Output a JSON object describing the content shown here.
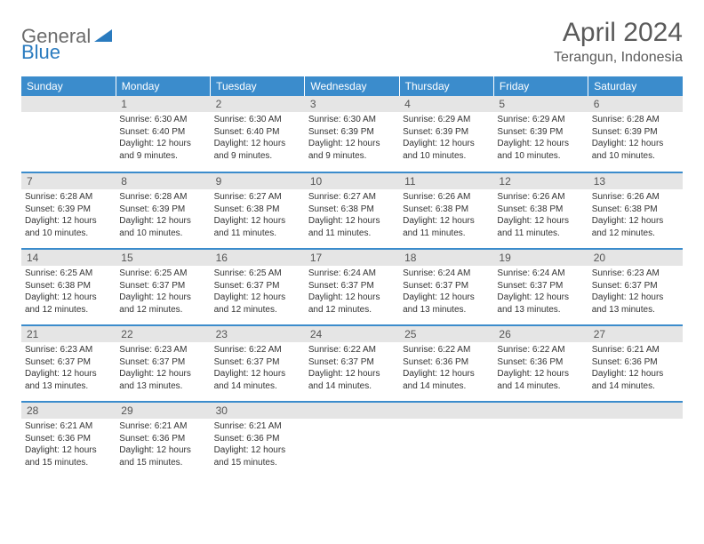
{
  "logo": {
    "text1": "General",
    "text2": "Blue"
  },
  "title": "April 2024",
  "location": "Terangun, Indonesia",
  "colors": {
    "header_bg": "#3b8ccc",
    "header_fg": "#ffffff",
    "daynum_bg": "#e5e5e5",
    "border": "#3b8ccc",
    "logo_gray": "#6b6b6b",
    "logo_blue": "#2a7bbf",
    "title_color": "#5a5a5a"
  },
  "weekdays": [
    "Sunday",
    "Monday",
    "Tuesday",
    "Wednesday",
    "Thursday",
    "Friday",
    "Saturday"
  ],
  "weeks": [
    [
      {
        "n": "",
        "sr": "",
        "ss": "",
        "dl": ""
      },
      {
        "n": "1",
        "sr": "Sunrise: 6:30 AM",
        "ss": "Sunset: 6:40 PM",
        "dl": "Daylight: 12 hours and 9 minutes."
      },
      {
        "n": "2",
        "sr": "Sunrise: 6:30 AM",
        "ss": "Sunset: 6:40 PM",
        "dl": "Daylight: 12 hours and 9 minutes."
      },
      {
        "n": "3",
        "sr": "Sunrise: 6:30 AM",
        "ss": "Sunset: 6:39 PM",
        "dl": "Daylight: 12 hours and 9 minutes."
      },
      {
        "n": "4",
        "sr": "Sunrise: 6:29 AM",
        "ss": "Sunset: 6:39 PM",
        "dl": "Daylight: 12 hours and 10 minutes."
      },
      {
        "n": "5",
        "sr": "Sunrise: 6:29 AM",
        "ss": "Sunset: 6:39 PM",
        "dl": "Daylight: 12 hours and 10 minutes."
      },
      {
        "n": "6",
        "sr": "Sunrise: 6:28 AM",
        "ss": "Sunset: 6:39 PM",
        "dl": "Daylight: 12 hours and 10 minutes."
      }
    ],
    [
      {
        "n": "7",
        "sr": "Sunrise: 6:28 AM",
        "ss": "Sunset: 6:39 PM",
        "dl": "Daylight: 12 hours and 10 minutes."
      },
      {
        "n": "8",
        "sr": "Sunrise: 6:28 AM",
        "ss": "Sunset: 6:39 PM",
        "dl": "Daylight: 12 hours and 10 minutes."
      },
      {
        "n": "9",
        "sr": "Sunrise: 6:27 AM",
        "ss": "Sunset: 6:38 PM",
        "dl": "Daylight: 12 hours and 11 minutes."
      },
      {
        "n": "10",
        "sr": "Sunrise: 6:27 AM",
        "ss": "Sunset: 6:38 PM",
        "dl": "Daylight: 12 hours and 11 minutes."
      },
      {
        "n": "11",
        "sr": "Sunrise: 6:26 AM",
        "ss": "Sunset: 6:38 PM",
        "dl": "Daylight: 12 hours and 11 minutes."
      },
      {
        "n": "12",
        "sr": "Sunrise: 6:26 AM",
        "ss": "Sunset: 6:38 PM",
        "dl": "Daylight: 12 hours and 11 minutes."
      },
      {
        "n": "13",
        "sr": "Sunrise: 6:26 AM",
        "ss": "Sunset: 6:38 PM",
        "dl": "Daylight: 12 hours and 12 minutes."
      }
    ],
    [
      {
        "n": "14",
        "sr": "Sunrise: 6:25 AM",
        "ss": "Sunset: 6:38 PM",
        "dl": "Daylight: 12 hours and 12 minutes."
      },
      {
        "n": "15",
        "sr": "Sunrise: 6:25 AM",
        "ss": "Sunset: 6:37 PM",
        "dl": "Daylight: 12 hours and 12 minutes."
      },
      {
        "n": "16",
        "sr": "Sunrise: 6:25 AM",
        "ss": "Sunset: 6:37 PM",
        "dl": "Daylight: 12 hours and 12 minutes."
      },
      {
        "n": "17",
        "sr": "Sunrise: 6:24 AM",
        "ss": "Sunset: 6:37 PM",
        "dl": "Daylight: 12 hours and 12 minutes."
      },
      {
        "n": "18",
        "sr": "Sunrise: 6:24 AM",
        "ss": "Sunset: 6:37 PM",
        "dl": "Daylight: 12 hours and 13 minutes."
      },
      {
        "n": "19",
        "sr": "Sunrise: 6:24 AM",
        "ss": "Sunset: 6:37 PM",
        "dl": "Daylight: 12 hours and 13 minutes."
      },
      {
        "n": "20",
        "sr": "Sunrise: 6:23 AM",
        "ss": "Sunset: 6:37 PM",
        "dl": "Daylight: 12 hours and 13 minutes."
      }
    ],
    [
      {
        "n": "21",
        "sr": "Sunrise: 6:23 AM",
        "ss": "Sunset: 6:37 PM",
        "dl": "Daylight: 12 hours and 13 minutes."
      },
      {
        "n": "22",
        "sr": "Sunrise: 6:23 AM",
        "ss": "Sunset: 6:37 PM",
        "dl": "Daylight: 12 hours and 13 minutes."
      },
      {
        "n": "23",
        "sr": "Sunrise: 6:22 AM",
        "ss": "Sunset: 6:37 PM",
        "dl": "Daylight: 12 hours and 14 minutes."
      },
      {
        "n": "24",
        "sr": "Sunrise: 6:22 AM",
        "ss": "Sunset: 6:37 PM",
        "dl": "Daylight: 12 hours and 14 minutes."
      },
      {
        "n": "25",
        "sr": "Sunrise: 6:22 AM",
        "ss": "Sunset: 6:36 PM",
        "dl": "Daylight: 12 hours and 14 minutes."
      },
      {
        "n": "26",
        "sr": "Sunrise: 6:22 AM",
        "ss": "Sunset: 6:36 PM",
        "dl": "Daylight: 12 hours and 14 minutes."
      },
      {
        "n": "27",
        "sr": "Sunrise: 6:21 AM",
        "ss": "Sunset: 6:36 PM",
        "dl": "Daylight: 12 hours and 14 minutes."
      }
    ],
    [
      {
        "n": "28",
        "sr": "Sunrise: 6:21 AM",
        "ss": "Sunset: 6:36 PM",
        "dl": "Daylight: 12 hours and 15 minutes."
      },
      {
        "n": "29",
        "sr": "Sunrise: 6:21 AM",
        "ss": "Sunset: 6:36 PM",
        "dl": "Daylight: 12 hours and 15 minutes."
      },
      {
        "n": "30",
        "sr": "Sunrise: 6:21 AM",
        "ss": "Sunset: 6:36 PM",
        "dl": "Daylight: 12 hours and 15 minutes."
      },
      {
        "n": "",
        "sr": "",
        "ss": "",
        "dl": ""
      },
      {
        "n": "",
        "sr": "",
        "ss": "",
        "dl": ""
      },
      {
        "n": "",
        "sr": "",
        "ss": "",
        "dl": ""
      },
      {
        "n": "",
        "sr": "",
        "ss": "",
        "dl": ""
      }
    ]
  ]
}
